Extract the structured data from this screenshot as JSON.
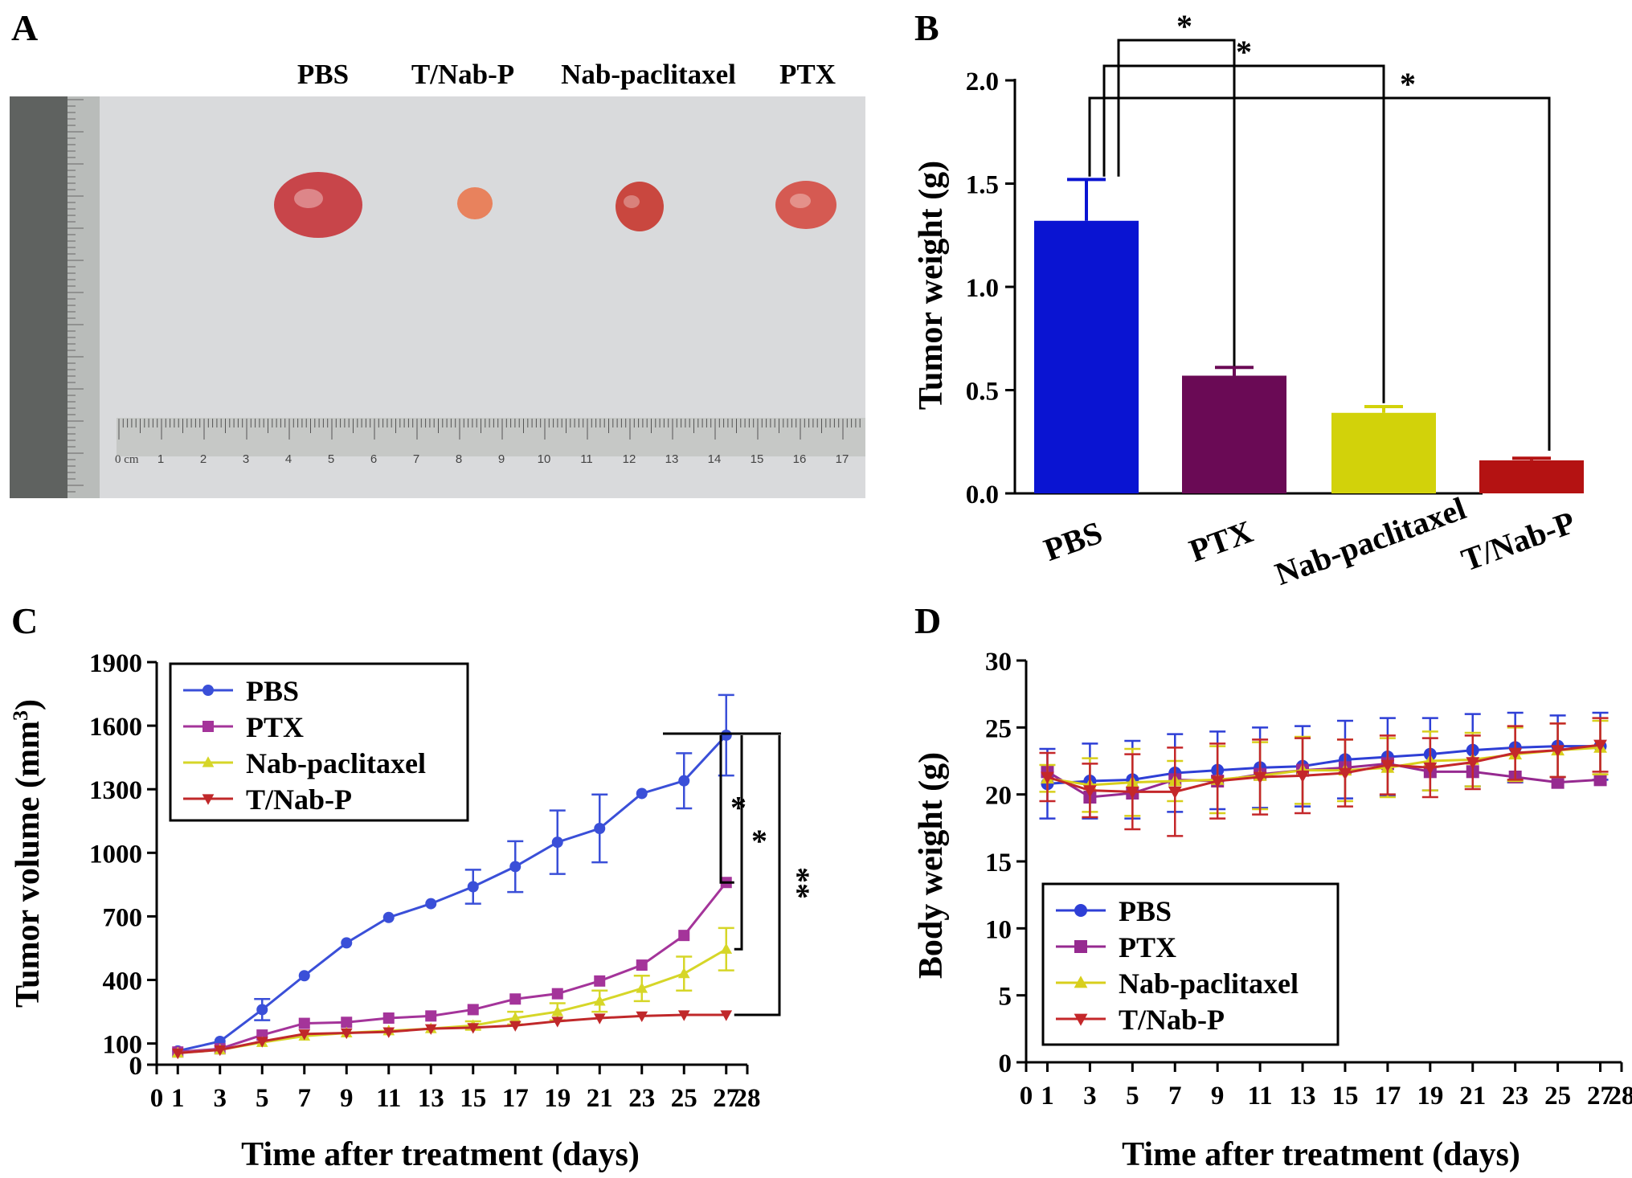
{
  "panels": {
    "A": {
      "letter": "A",
      "labels": [
        "PBS",
        "T/Nab-P",
        "Nab-paclitaxel",
        "PTX"
      ],
      "ruler_unit": "0 cm",
      "ruler_ticks": [
        "1",
        "2",
        "3",
        "4",
        "5",
        "6",
        "7",
        "8",
        "9",
        "10",
        "11",
        "12",
        "13",
        "14",
        "15",
        "16",
        "17"
      ],
      "tumor_colors": [
        "#c8454a",
        "#e8825d",
        "#c9473f",
        "#d55a52"
      ]
    },
    "B": {
      "letter": "B"
    },
    "C": {
      "letter": "C"
    },
    "D": {
      "letter": "D"
    }
  },
  "chart_data": [
    {
      "panel": "B",
      "type": "bar",
      "title": "",
      "xlabel": "",
      "ylabel": "Tumor weight (g)",
      "categories": [
        "PBS",
        "PTX",
        "Nab-paclitaxel",
        "T/Nab-P"
      ],
      "values": [
        1.32,
        0.57,
        0.39,
        0.16
      ],
      "errors": [
        0.2,
        0.04,
        0.03,
        0.01
      ],
      "colors": [
        "#0a14d2",
        "#6a0a55",
        "#d2d20a",
        "#b41212"
      ],
      "ylim": [
        0,
        2.0
      ],
      "yticks": [
        "0.0",
        "0.5",
        "1.0",
        "1.5",
        "2.0"
      ],
      "significance": [
        {
          "pair": [
            "PBS",
            "PTX"
          ],
          "label": "*"
        },
        {
          "pair": [
            "PBS",
            "Nab-paclitaxel"
          ],
          "label": "*"
        },
        {
          "pair": [
            "PBS",
            "T/Nab-P"
          ],
          "label": "*"
        }
      ]
    },
    {
      "panel": "C",
      "type": "line",
      "xlabel": "Time after treatment (days)",
      "ylabel": "Tumor volume (mm3)",
      "xlim": [
        0,
        28
      ],
      "ylim": [
        0,
        1900
      ],
      "xticks": [
        "0",
        "1",
        "3",
        "5",
        "7",
        "9",
        "11",
        "13",
        "15",
        "17",
        "19",
        "21",
        "23",
        "25",
        "27",
        "28"
      ],
      "yticks": [
        "0",
        "100",
        "400",
        "700",
        "1000",
        "1300",
        "1600",
        "1900"
      ],
      "x": [
        1,
        3,
        5,
        7,
        9,
        11,
        13,
        15,
        17,
        19,
        21,
        23,
        25,
        27
      ],
      "series": [
        {
          "name": "PBS",
          "color": "#3a4fd8",
          "marker": "circle",
          "values": [
            65,
            110,
            260,
            420,
            575,
            695,
            760,
            840,
            935,
            1050,
            1115,
            1280,
            1340,
            1555
          ],
          "errors": [
            0,
            0,
            50,
            0,
            0,
            0,
            0,
            80,
            120,
            150,
            160,
            0,
            130,
            190
          ]
        },
        {
          "name": "PTX",
          "color": "#a4349a",
          "marker": "square",
          "values": [
            60,
            75,
            140,
            195,
            200,
            220,
            230,
            260,
            310,
            335,
            395,
            470,
            610,
            860
          ],
          "errors": [
            0,
            0,
            0,
            0,
            0,
            0,
            0,
            0,
            0,
            0,
            0,
            0,
            0,
            0
          ]
        },
        {
          "name": "Nab-paclitaxel",
          "color": "#d6d628",
          "marker": "triangle-up",
          "values": [
            55,
            70,
            105,
            135,
            150,
            160,
            170,
            185,
            220,
            250,
            300,
            360,
            430,
            545
          ],
          "errors": [
            0,
            0,
            0,
            0,
            0,
            0,
            0,
            20,
            30,
            40,
            50,
            60,
            80,
            100
          ]
        },
        {
          "name": "T/Nab-P",
          "color": "#c0282a",
          "marker": "triangle-down",
          "values": [
            55,
            70,
            110,
            145,
            150,
            155,
            170,
            175,
            185,
            205,
            220,
            230,
            235,
            235
          ],
          "errors": [
            0,
            0,
            0,
            0,
            0,
            0,
            0,
            0,
            0,
            0,
            0,
            0,
            0,
            0
          ]
        }
      ],
      "significance": [
        {
          "pair": [
            "PBS",
            "PTX"
          ],
          "label": "*"
        },
        {
          "pair": [
            "PBS",
            "Nab-paclitaxel"
          ],
          "label": "*"
        },
        {
          "pair": [
            "PBS",
            "T/Nab-P"
          ],
          "label": "**"
        }
      ]
    },
    {
      "panel": "D",
      "type": "line",
      "xlabel": "Time after treatment (days)",
      "ylabel": "Body weight (g)",
      "xlim": [
        0,
        28
      ],
      "ylim": [
        0,
        30
      ],
      "xticks": [
        "0",
        "1",
        "3",
        "5",
        "7",
        "9",
        "11",
        "13",
        "15",
        "17",
        "19",
        "21",
        "23",
        "25",
        "27",
        "28"
      ],
      "yticks": [
        "0",
        "5",
        "10",
        "15",
        "20",
        "25",
        "30"
      ],
      "x": [
        1,
        3,
        5,
        7,
        9,
        11,
        13,
        15,
        17,
        19,
        21,
        23,
        25,
        27
      ],
      "series": [
        {
          "name": "PBS",
          "color": "#2e3fd6",
          "marker": "circle",
          "values": [
            20.8,
            21.0,
            21.1,
            21.6,
            21.8,
            22.0,
            22.1,
            22.6,
            22.8,
            23.0,
            23.3,
            23.5,
            23.6,
            23.6
          ],
          "errors": [
            2.6,
            2.8,
            2.9,
            2.9,
            2.9,
            3.0,
            3.0,
            2.9,
            2.9,
            2.7,
            2.7,
            2.6,
            2.3,
            2.5
          ]
        },
        {
          "name": "PTX",
          "color": "#962a90",
          "marker": "square",
          "values": [
            21.7,
            19.8,
            20.1,
            21.1,
            21.0,
            21.5,
            21.8,
            22.0,
            22.3,
            21.7,
            21.7,
            21.3,
            20.9,
            21.1
          ],
          "errors": [
            0,
            0,
            0,
            0,
            0,
            0,
            0,
            0,
            0,
            0,
            0,
            0,
            0,
            0
          ]
        },
        {
          "name": "Nab-paclitaxel",
          "color": "#d8cf1c",
          "marker": "triangle-up",
          "values": [
            21.2,
            20.7,
            20.9,
            21.0,
            21.1,
            21.4,
            21.8,
            21.8,
            22.0,
            22.5,
            22.6,
            23.0,
            23.3,
            23.5
          ],
          "errors": [
            1.0,
            2.0,
            2.5,
            1.5,
            2.5,
            2.5,
            2.5,
            2.3,
            2.2,
            2.2,
            2.0,
            2.0,
            2.0,
            2.0
          ]
        },
        {
          "name": "T/Nab-P",
          "color": "#c4272a",
          "marker": "triangle-down",
          "values": [
            21.3,
            20.3,
            20.2,
            20.2,
            21.0,
            21.3,
            21.4,
            21.6,
            22.2,
            22.0,
            22.4,
            23.1,
            23.3,
            23.7
          ],
          "errors": [
            1.8,
            2.0,
            2.8,
            3.3,
            2.8,
            2.8,
            2.8,
            2.5,
            2.2,
            2.2,
            2.0,
            2.0,
            2.0,
            2.0
          ]
        }
      ]
    }
  ]
}
